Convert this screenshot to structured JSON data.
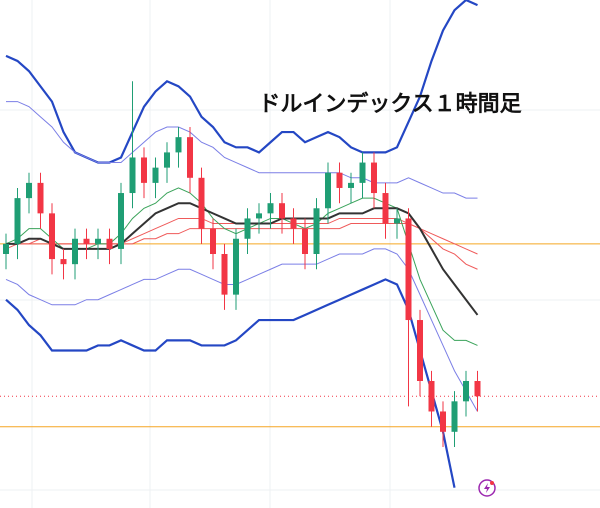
{
  "chart_data": {
    "type": "candlestick",
    "title": "ドルインデックス１時間足",
    "ylim": [
      0,
      100
    ],
    "up_color": "#1f9e74",
    "down_color": "#f23645",
    "open": [
      50,
      52,
      61,
      64,
      58,
      49,
      48,
      53,
      52,
      53,
      51,
      62,
      69,
      64,
      67,
      70,
      73,
      65,
      55,
      50,
      42,
      53,
      57,
      58,
      60,
      57,
      55,
      50,
      59,
      66,
      63,
      64,
      68,
      62,
      56,
      57,
      37,
      25,
      19,
      15,
      21,
      25
    ],
    "high": [
      54,
      63,
      66,
      66,
      60,
      51,
      55,
      55,
      55,
      55,
      64,
      84,
      71,
      69,
      72,
      75,
      75,
      67,
      57,
      52,
      55,
      59,
      60,
      62,
      62,
      59,
      57,
      61,
      68,
      68,
      66,
      70,
      70,
      64,
      59,
      59,
      39,
      27,
      21,
      23,
      27,
      27
    ],
    "low": [
      47,
      49,
      58,
      55,
      46,
      45,
      45,
      49,
      49,
      48,
      48,
      59,
      61,
      61,
      64,
      67,
      62,
      52,
      47,
      39,
      39,
      50,
      54,
      55,
      54,
      52,
      47,
      47,
      56,
      60,
      60,
      61,
      59,
      53,
      53,
      20,
      22,
      16,
      12,
      12,
      18,
      19
    ],
    "close": [
      52,
      61,
      64,
      58,
      49,
      48,
      53,
      52,
      53,
      51,
      62,
      69,
      64,
      67,
      70,
      73,
      65,
      55,
      50,
      42,
      53,
      57,
      58,
      60,
      57,
      55,
      50,
      59,
      66,
      63,
      64,
      68,
      62,
      56,
      57,
      37,
      25,
      19,
      15,
      21,
      25,
      22
    ],
    "series": [
      {
        "color": "#2447c4",
        "width": 2.2,
        "values": [
          89,
          88,
          86,
          83,
          80,
          74,
          70,
          69,
          68,
          68,
          69,
          74,
          79,
          82,
          84,
          83,
          81,
          77,
          75,
          72,
          71,
          71,
          70,
          72,
          74,
          74,
          72,
          73,
          74,
          73,
          71,
          70,
          70,
          70,
          71,
          76,
          81,
          88,
          94,
          98,
          100,
          99
        ]
      },
      {
        "color": "#2447c4",
        "width": 2.2,
        "values": [
          41,
          39,
          36,
          34,
          31,
          31,
          31,
          31,
          32,
          32,
          33,
          32,
          31,
          31,
          33,
          33,
          33,
          32,
          32,
          32,
          33,
          35,
          37,
          37,
          37,
          37,
          38,
          39,
          40,
          41,
          42,
          43,
          44,
          45,
          44,
          39,
          31,
          23,
          15,
          4,
          null,
          null
        ]
      },
      {
        "color": "#7b7fe6",
        "width": 1,
        "values": [
          80,
          80,
          79,
          77,
          75,
          72,
          70,
          69,
          68,
          68,
          68,
          70,
          72,
          74,
          75,
          75,
          74,
          72,
          71,
          69,
          68,
          67,
          66,
          66,
          66,
          66,
          66,
          66,
          66,
          66,
          65,
          65,
          64,
          64,
          64,
          65,
          64,
          63,
          62,
          62,
          61,
          61
        ]
      },
      {
        "color": "#7b7fe6",
        "width": 1,
        "values": [
          45,
          44,
          42,
          41,
          40,
          40,
          40,
          41,
          41,
          42,
          43,
          44,
          45,
          45,
          46,
          47,
          47,
          46,
          45,
          44,
          44,
          45,
          46,
          47,
          48,
          48,
          48,
          48,
          49,
          50,
          50,
          50,
          51,
          51,
          50,
          47,
          42,
          37,
          32,
          27,
          23,
          19
        ]
      },
      {
        "color": "#ef5a5a",
        "width": 1,
        "values": [
          52,
          52,
          52,
          52,
          52,
          52,
          52,
          52,
          52,
          52,
          52,
          52,
          53,
          53,
          54,
          54,
          55,
          55,
          55,
          55,
          55,
          55,
          55,
          55,
          55,
          55,
          55,
          55,
          55,
          55,
          56,
          56,
          56,
          56,
          56,
          56,
          55,
          54,
          53,
          52,
          51,
          50
        ]
      },
      {
        "color": "#ef5a5a",
        "width": 1,
        "values": [
          51,
          52,
          52,
          53,
          52,
          52,
          52,
          52,
          52,
          52,
          52,
          53,
          54,
          55,
          56,
          57,
          57,
          57,
          56,
          56,
          56,
          56,
          56,
          56,
          56,
          56,
          56,
          56,
          56,
          57,
          57,
          57,
          57,
          57,
          57,
          56,
          55,
          53,
          51,
          50,
          48,
          47
        ]
      },
      {
        "color": "#3aa35a",
        "width": 1,
        "values": [
          52,
          53,
          55,
          55,
          53,
          51,
          51,
          51,
          52,
          52,
          54,
          57,
          59,
          60,
          62,
          63,
          62,
          60,
          57,
          55,
          54,
          55,
          56,
          57,
          57,
          56,
          55,
          56,
          58,
          59,
          60,
          61,
          61,
          60,
          59,
          52,
          45,
          40,
          35,
          33,
          33,
          32
        ]
      },
      {
        "color": "#333333",
        "width": 2,
        "values": [
          52,
          52,
          53,
          53,
          52,
          51,
          51,
          51,
          51,
          51,
          52,
          54,
          56,
          58,
          59,
          60,
          60,
          59,
          58,
          57,
          56,
          56,
          56,
          56,
          57,
          57,
          57,
          57,
          57,
          58,
          58,
          58,
          59,
          59,
          59,
          58,
          55,
          51,
          47,
          44,
          41,
          38
        ]
      }
    ],
    "hlines": [
      {
        "value": 52,
        "color": "#f5a623",
        "dash": "none"
      },
      {
        "value": 16,
        "color": "#f5a623",
        "dash": "none"
      },
      {
        "value": 22,
        "color": "#f23645",
        "dash": "1,3"
      }
    ]
  }
}
